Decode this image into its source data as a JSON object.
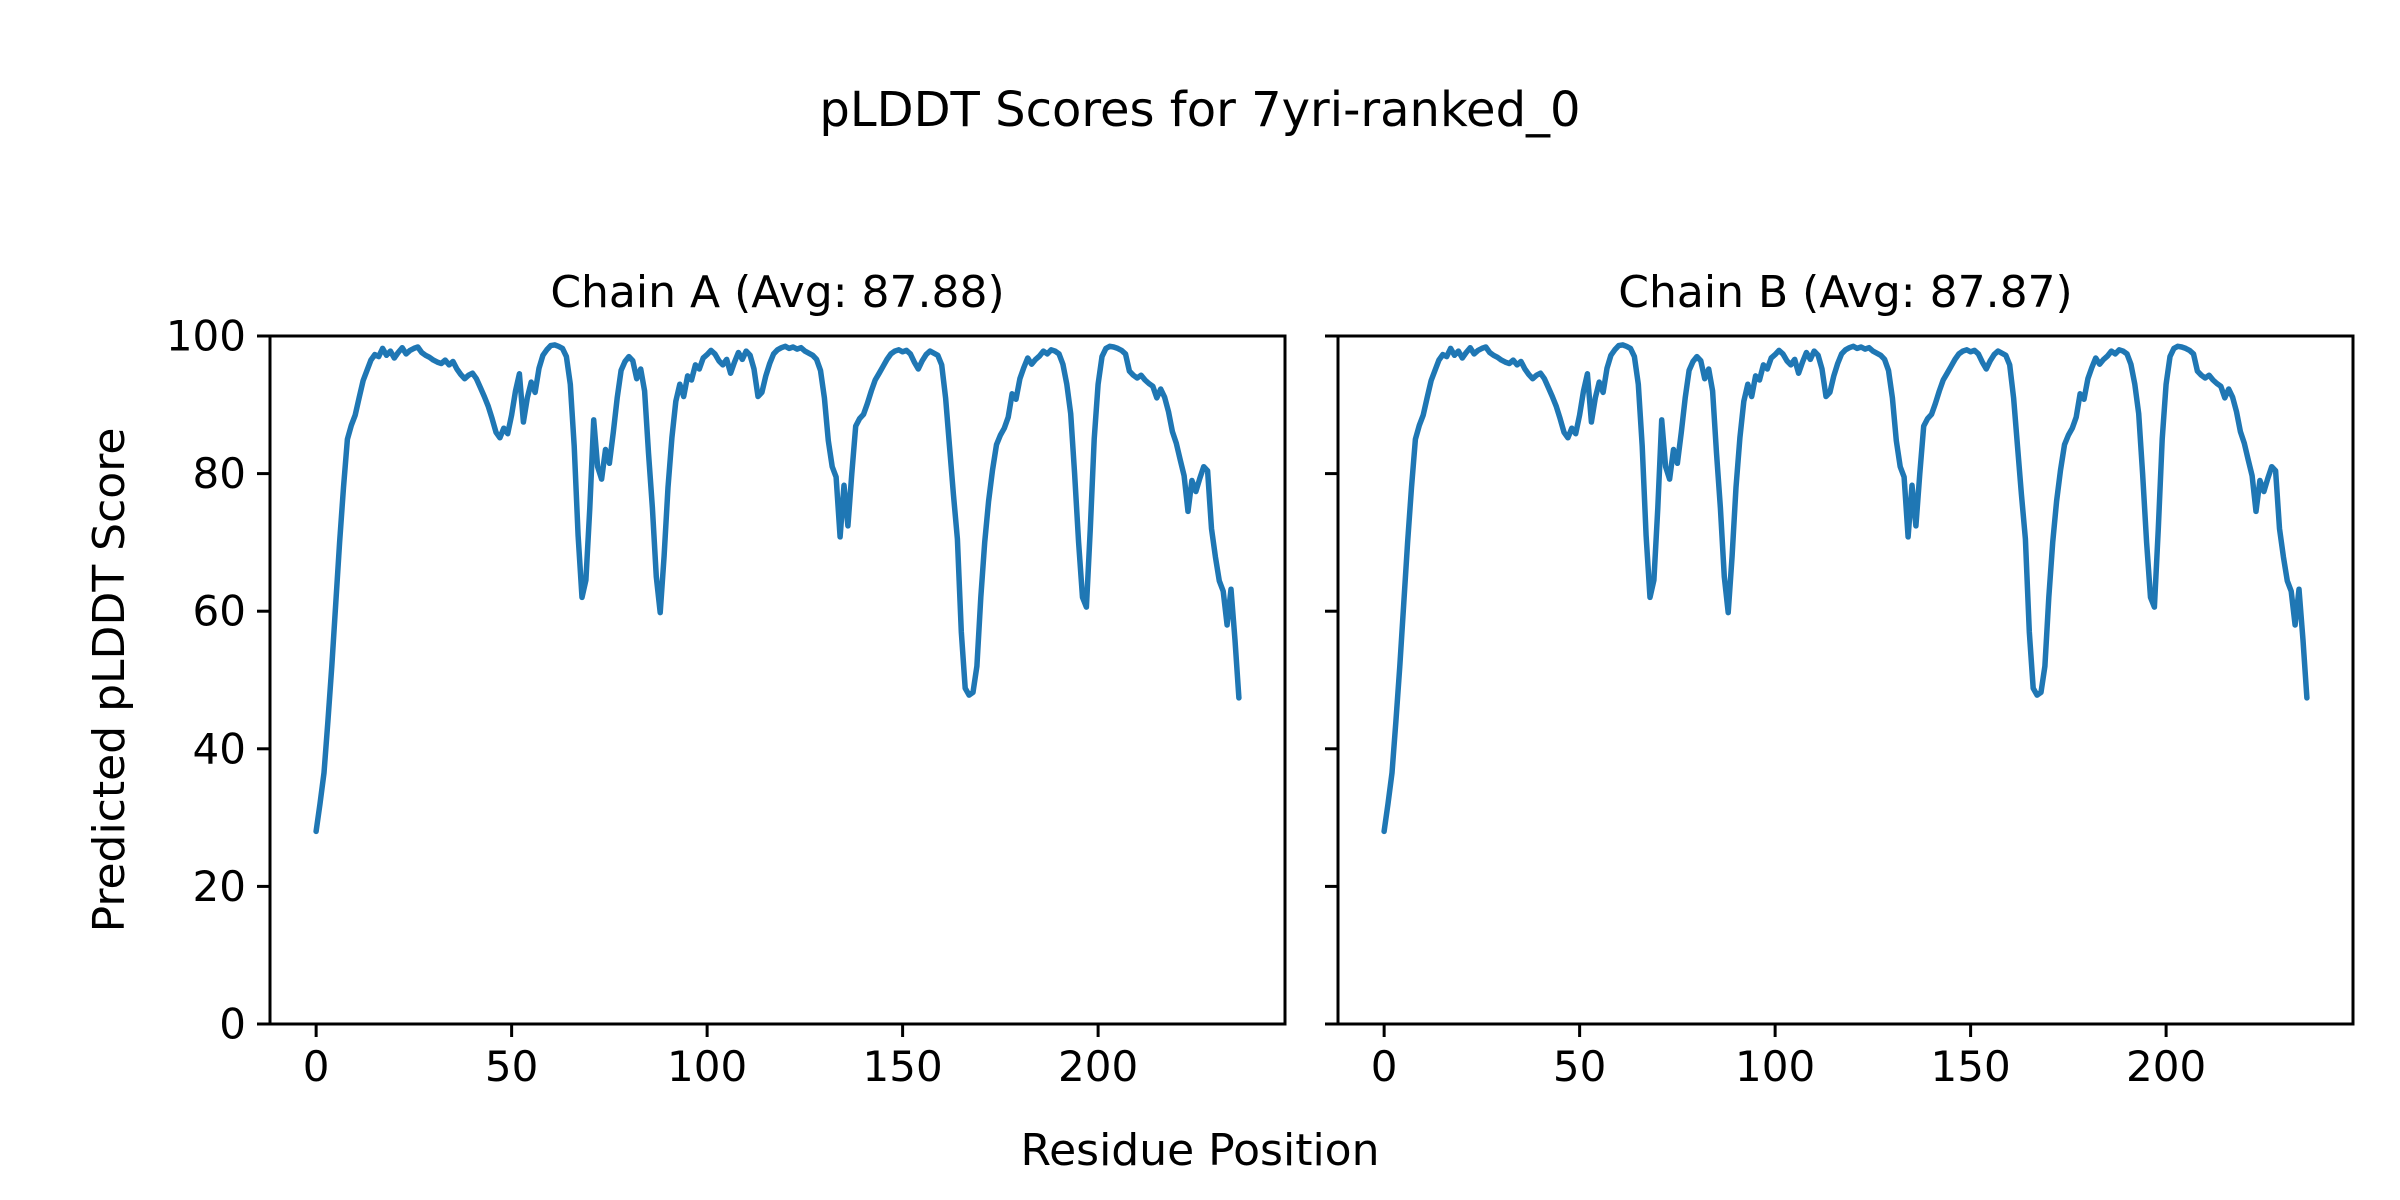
{
  "chart_data": {
    "type": "line",
    "title": "pLDDT Scores for 7yri-ranked_0",
    "xlabel": "Residue Position",
    "ylabel": "Predicted pLDDT Score",
    "grid": false,
    "legend": "none",
    "background_color": "#ffffff",
    "text_color": "#000000",
    "line_color": "#1f77b4",
    "xticks": [
      0,
      50,
      100,
      150,
      200
    ],
    "yticks": [
      0,
      20,
      40,
      60,
      80,
      100
    ],
    "xlim": [
      -11.8,
      247.8
    ],
    "ylim": [
      0,
      100
    ],
    "x_note": "x values are implicit residue indices 0..236, one point per residue",
    "panels": [
      {
        "title": "Chain A (Avg: 87.88)",
        "name": "Chain A",
        "avg": 87.88,
        "values": [
          28,
          32,
          36.5,
          44,
          52,
          61,
          70,
          78,
          85,
          87,
          88.5,
          91,
          93.5,
          95,
          96.5,
          97.3,
          97,
          98.2,
          97.2,
          97.8,
          96.8,
          97.6,
          98.3,
          97.4,
          97.9,
          98.2,
          98.4,
          97.6,
          97.2,
          96.9,
          96.5,
          96.2,
          96,
          96.5,
          95.8,
          96.3,
          95.2,
          94.4,
          93.8,
          94.3,
          94.6,
          93.8,
          92.5,
          91.2,
          89.8,
          88,
          86,
          85.2,
          86.6,
          85.8,
          88.5,
          92,
          94.5,
          87.5,
          91,
          93.3,
          91.8,
          95.3,
          97.2,
          98,
          98.6,
          98.7,
          98.5,
          98.2,
          97,
          93,
          84,
          71,
          62,
          64.5,
          75,
          87.8,
          81,
          79.2,
          83.5,
          81.5,
          86,
          91,
          95,
          96.3,
          97,
          96.4,
          93.8,
          95.2,
          92,
          83,
          75,
          65,
          59.8,
          68,
          78,
          85.2,
          90.5,
          93,
          91.2,
          94.2,
          93.6,
          95.8,
          95.2,
          96.8,
          97.3,
          97.9,
          97.4,
          96.4,
          95.8,
          96.6,
          94.6,
          96.2,
          97.6,
          96.6,
          97.8,
          97.2,
          95.2,
          91.2,
          91.8,
          94.2,
          96,
          97.4,
          98,
          98.3,
          98.5,
          98.2,
          98.4,
          98.1,
          98.3,
          97.8,
          97.5,
          97.2,
          96.6,
          95,
          91,
          84.8,
          81,
          79.5,
          70.8,
          78.3,
          72.4,
          80,
          86.9,
          88,
          88.6,
          90.2,
          92,
          93.6,
          94.6,
          95.6,
          96.6,
          97.4,
          97.8,
          98,
          97.7,
          97.9,
          97.4,
          96.2,
          95.2,
          96.4,
          97.3,
          97.8,
          97.5,
          97.2,
          95.8,
          91,
          84,
          77,
          70.5,
          57,
          48.8,
          47.8,
          48.2,
          52,
          62,
          70,
          76,
          80.5,
          84.2,
          85.6,
          86.6,
          88.2,
          91.6,
          90.8,
          93.8,
          95.4,
          96.8,
          95.9,
          96.6,
          97.1,
          97.8,
          97.4,
          98,
          97.8,
          97.4,
          95.9,
          93,
          88.7,
          80,
          70,
          62,
          60.6,
          72,
          85,
          93,
          97,
          98.2,
          98.5,
          98.4,
          98.2,
          97.9,
          97.4,
          94.9,
          94.3,
          93.9,
          94.3,
          93.6,
          93.1,
          92.7,
          91,
          92.3,
          91.1,
          89,
          86.1,
          84.4,
          82,
          79.7,
          74.5,
          79,
          77.4,
          79.3,
          81,
          80.4,
          72,
          67.9,
          64.4,
          62.9,
          58,
          63.2,
          55.8,
          47.4
        ]
      },
      {
        "title": "Chain B (Avg: 87.87)",
        "name": "Chain B",
        "avg": 87.87,
        "values": [
          28,
          32,
          36.5,
          44,
          52,
          61,
          70,
          78,
          85,
          87,
          88.5,
          91,
          93.5,
          95,
          96.5,
          97.3,
          97,
          98.2,
          97.2,
          97.8,
          96.8,
          97.6,
          98.3,
          97.4,
          97.9,
          98.2,
          98.4,
          97.6,
          97.2,
          96.9,
          96.5,
          96.2,
          96,
          96.5,
          95.8,
          96.3,
          95.2,
          94.4,
          93.8,
          94.3,
          94.6,
          93.8,
          92.5,
          91.2,
          89.8,
          88,
          86,
          85.2,
          86.6,
          85.8,
          88.5,
          92,
          94.5,
          87.5,
          91,
          93.3,
          91.8,
          95.3,
          97.2,
          98,
          98.6,
          98.7,
          98.5,
          98.2,
          97,
          93,
          84,
          71,
          62,
          64.5,
          75,
          87.8,
          81,
          79.2,
          83.5,
          81.5,
          86,
          91,
          95,
          96.3,
          97,
          96.4,
          93.8,
          95.2,
          92,
          83,
          75,
          65,
          59.8,
          68,
          78,
          85.2,
          90.5,
          93,
          91.2,
          94.2,
          93.6,
          95.8,
          95.2,
          96.8,
          97.3,
          97.9,
          97.4,
          96.4,
          95.8,
          96.6,
          94.6,
          96.2,
          97.6,
          96.6,
          97.8,
          97.2,
          95.2,
          91.2,
          91.8,
          94.2,
          96,
          97.4,
          98,
          98.3,
          98.5,
          98.2,
          98.4,
          98.1,
          98.3,
          97.8,
          97.5,
          97.2,
          96.6,
          95,
          91,
          84.8,
          81,
          79.5,
          70.8,
          78.3,
          72.4,
          80,
          86.9,
          88,
          88.6,
          90.2,
          92,
          93.6,
          94.6,
          95.6,
          96.6,
          97.4,
          97.8,
          98,
          97.7,
          97.9,
          97.4,
          96.2,
          95.2,
          96.4,
          97.3,
          97.8,
          97.5,
          97.2,
          95.8,
          91,
          84,
          77,
          70.5,
          57,
          48.8,
          47.8,
          48.2,
          52,
          62,
          70,
          76,
          80.5,
          84.2,
          85.6,
          86.6,
          88.2,
          91.6,
          90.8,
          93.8,
          95.4,
          96.8,
          95.9,
          96.6,
          97.1,
          97.8,
          97.4,
          98,
          97.8,
          97.4,
          95.9,
          93,
          88.7,
          80,
          70,
          62,
          60.6,
          72,
          85,
          93,
          97,
          98.2,
          98.5,
          98.4,
          98.2,
          97.9,
          97.4,
          94.9,
          94.3,
          93.9,
          94.3,
          93.6,
          93.1,
          92.7,
          91,
          92.3,
          91.1,
          89,
          86.1,
          84.4,
          82,
          79.7,
          74.5,
          79,
          77.4,
          79.3,
          81,
          80.4,
          72,
          67.9,
          64.4,
          62.9,
          58,
          63.2,
          55.8,
          47.4
        ]
      }
    ]
  }
}
